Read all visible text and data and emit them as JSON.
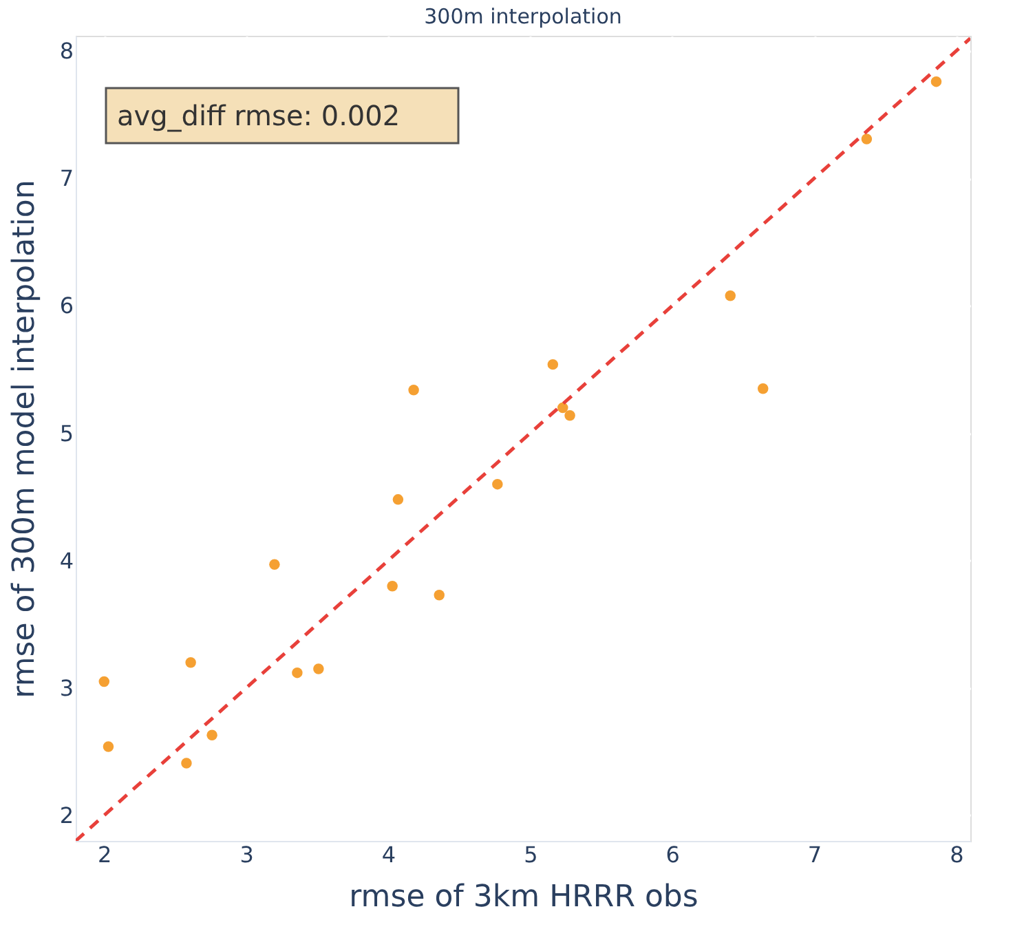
{
  "chart_data": {
    "type": "scatter",
    "title": "300m interpolation",
    "xlabel": "rmse of 3km HRRR obs",
    "ylabel": "rmse of 300m model interpolation",
    "xlim": [
      1.8,
      8.1
    ],
    "ylim": [
      1.8,
      8.12
    ],
    "xticks": [
      2,
      3,
      4,
      5,
      6,
      7,
      8
    ],
    "yticks": [
      2,
      3,
      4,
      5,
      6,
      7,
      8
    ],
    "grid": true,
    "annotations": [
      "avg_diff rmse: 0.002"
    ],
    "series": [
      {
        "color": "#f5a032",
        "marker": "circle",
        "x": [
          2.0,
          2.03,
          2.61,
          2.58,
          2.76,
          3.2,
          3.36,
          3.51,
          4.03,
          4.07,
          4.36,
          4.77,
          4.18,
          5.16,
          5.23,
          5.28,
          6.41,
          6.64,
          7.37,
          7.86
        ],
        "values": [
          3.05,
          2.54,
          3.2,
          2.41,
          2.63,
          3.97,
          3.12,
          3.15,
          3.8,
          4.48,
          3.73,
          4.6,
          5.34,
          5.54,
          5.2,
          5.14,
          6.08,
          5.35,
          7.31,
          7.76
        ]
      },
      {
        "type": "line",
        "color": "#e8403a",
        "marker": "none",
        "line_style": "dashed",
        "x": [
          1.8,
          8.1
        ],
        "values": [
          1.8,
          8.1
        ]
      }
    ]
  }
}
